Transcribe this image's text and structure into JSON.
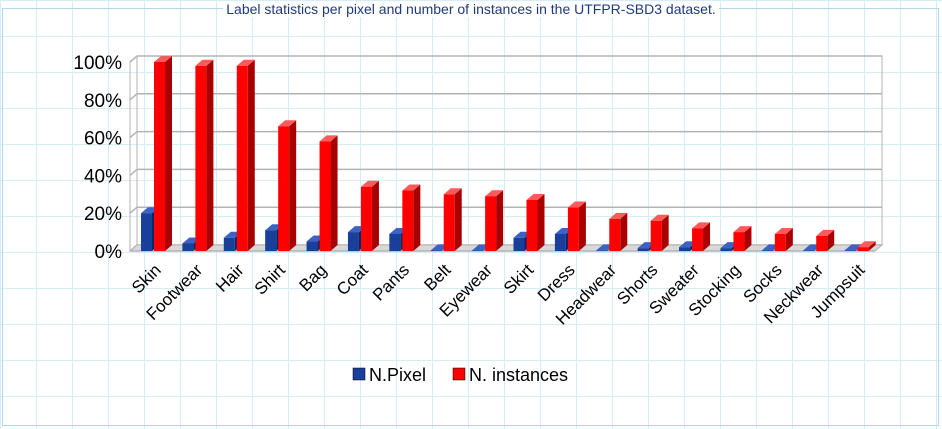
{
  "colors": {
    "n_pixel": "#1a3f9a",
    "n_pixel_side": "#0d2466",
    "n_pixel_top": "#3b62c4",
    "n_instances": "#ff0000",
    "n_instances_side": "#a80000",
    "n_instances_top": "#ff5a5a",
    "grid": "#b3b3b3",
    "title": "#1f3a7a"
  },
  "chart_data": {
    "type": "bar",
    "title": "Label statistics per pixel and number of instances in the UTFPR-SBD3 dataset.",
    "xlabel": "",
    "ylabel": "",
    "ylim": [
      0,
      100
    ],
    "yticks": [
      "0%",
      "20%",
      "40%",
      "60%",
      "80%",
      "100%"
    ],
    "grid": true,
    "legend_placement": "bottom",
    "categories": [
      "Skin",
      "Footwear",
      "Hair",
      "Shirt",
      "Bag",
      "Coat",
      "Pants",
      "Belt",
      "Eyewear",
      "Skirt",
      "Dress",
      "Headwear",
      "Shorts",
      "Sweater",
      "Stocking",
      "Socks",
      "Neckwear",
      "Jumpsuit"
    ],
    "series": [
      {
        "name": "N.Pixel",
        "values": [
          20,
          4,
          7,
          11,
          5,
          10,
          9,
          0.3,
          0.3,
          7,
          9,
          0.3,
          1.5,
          2,
          1.5,
          0.3,
          0.3,
          0.3
        ]
      },
      {
        "name": "N. instances",
        "values": [
          100,
          98,
          98,
          66,
          58,
          34,
          32,
          30,
          29,
          27,
          23,
          17,
          16,
          12,
          10,
          9,
          8,
          2
        ]
      }
    ]
  }
}
